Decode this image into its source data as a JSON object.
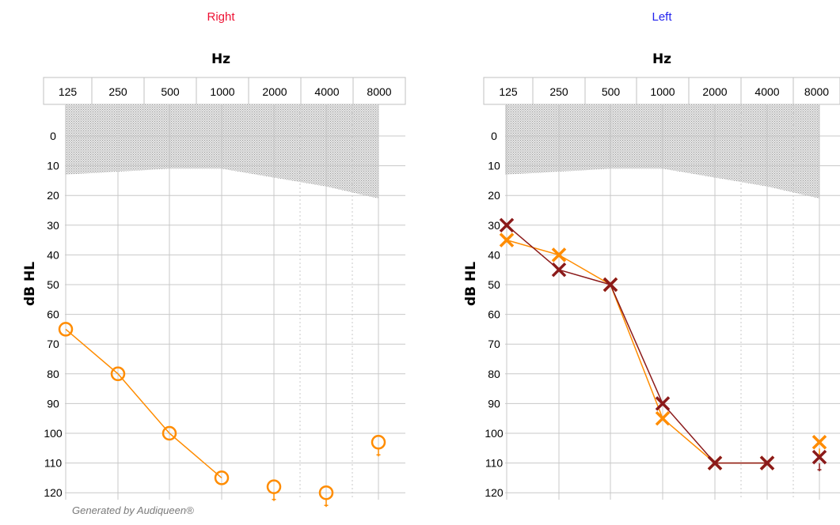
{
  "footer": "Generated by Audiqueen®",
  "colors": {
    "right_title": "#ee1133",
    "left_title": "#2222ee",
    "air_conduction": "#ff8c00",
    "masked": "#8b1a1a",
    "grid": "#c8c8c8",
    "normal_zone": "#b4b4b4"
  },
  "chart_data": [
    {
      "type": "line",
      "title": "Right",
      "xlabel": "Hz",
      "ylabel": "dB  HL",
      "x_ticks": [
        "125",
        "250",
        "500",
        "1000",
        "2000",
        "4000",
        "8000"
      ],
      "y_ticks": [
        "0",
        "10",
        "20",
        "30",
        "40",
        "50",
        "60",
        "70",
        "80",
        "90",
        "100",
        "110",
        "120"
      ],
      "ylim": [
        -10,
        125
      ],
      "y_inverted": true,
      "grid": true,
      "normal_hearing_zone": {
        "x": [
          "125",
          "250",
          "500",
          "1000",
          "2000",
          "4000",
          "8000"
        ],
        "upper_db": [
          13,
          12,
          11,
          11,
          14,
          17,
          21
        ]
      },
      "series": [
        {
          "symbol": "circle",
          "color": "#ff8c00",
          "connected": [
            {
              "x": "125",
              "y": 65
            },
            {
              "x": "250",
              "y": 80
            },
            {
              "x": "500",
              "y": 100
            },
            {
              "x": "1000",
              "y": 115
            }
          ],
          "no_response": [
            {
              "x": "2000",
              "y": 118
            },
            {
              "x": "4000",
              "y": 120
            },
            {
              "x": "8000",
              "y": 103
            }
          ]
        }
      ]
    },
    {
      "type": "line",
      "title": "Left",
      "xlabel": "Hz",
      "ylabel": "dB  HL",
      "x_ticks": [
        "125",
        "250",
        "500",
        "1000",
        "2000",
        "4000",
        "8000"
      ],
      "y_ticks": [
        "0",
        "10",
        "20",
        "30",
        "40",
        "50",
        "60",
        "70",
        "80",
        "90",
        "100",
        "110",
        "120"
      ],
      "ylim": [
        -10,
        125
      ],
      "y_inverted": true,
      "grid": true,
      "normal_hearing_zone": {
        "x": [
          "125",
          "250",
          "500",
          "1000",
          "2000",
          "4000",
          "8000"
        ],
        "upper_db": [
          13,
          12,
          11,
          11,
          14,
          17,
          21
        ]
      },
      "series": [
        {
          "symbol": "cross",
          "color": "#ff8c00",
          "connected": [
            {
              "x": "125",
              "y": 35
            },
            {
              "x": "250",
              "y": 40
            },
            {
              "x": "500",
              "y": 50
            },
            {
              "x": "1000",
              "y": 95
            },
            {
              "x": "2000",
              "y": 110
            },
            {
              "x": "4000",
              "y": 110
            }
          ],
          "no_response": [
            {
              "x": "8000",
              "y": 103
            }
          ]
        },
        {
          "symbol": "cross",
          "color": "#8b1a1a",
          "connected": [
            {
              "x": "125",
              "y": 30
            },
            {
              "x": "250",
              "y": 45
            },
            {
              "x": "500",
              "y": 50
            },
            {
              "x": "1000",
              "y": 90
            },
            {
              "x": "2000",
              "y": 110
            },
            {
              "x": "4000",
              "y": 110
            }
          ],
          "no_response": [
            {
              "x": "8000",
              "y": 108
            }
          ]
        }
      ]
    }
  ]
}
